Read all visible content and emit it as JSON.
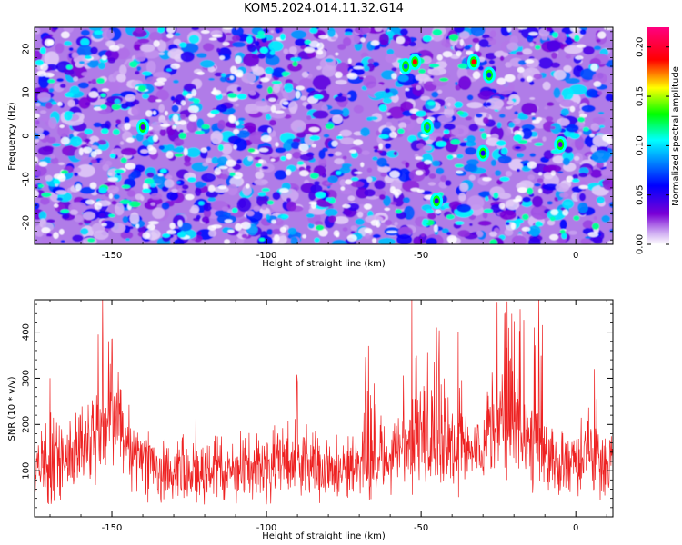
{
  "title": "KOM5.2024.014.11.32.G14",
  "chart_data": [
    {
      "type": "heatmap",
      "title": "KOM5.2024.014.11.32.G14",
      "xlabel": "Height of straight line (km)",
      "ylabel": "Frequency (Hz)",
      "xlim": [
        -175,
        12
      ],
      "ylim": [
        -25,
        25
      ],
      "xticks": [
        -150,
        -100,
        -50,
        0
      ],
      "yticks": [
        -20,
        -10,
        0,
        10,
        20
      ],
      "colorbar": {
        "label": "Normalized spectral amplitude",
        "range": [
          0,
          0.22
        ],
        "ticks": [
          "0.00",
          "0.05",
          "0.10",
          "0.15",
          "0.20"
        ],
        "colors": [
          "#ffffff",
          "#7a00d6",
          "#0000ff",
          "#00ffff",
          "#00ff00",
          "#ffff00",
          "#ff0000",
          "#ff0080"
        ]
      },
      "hotspots": [
        {
          "x": -52,
          "y": 17,
          "value": 0.22
        },
        {
          "x": -33,
          "y": 17,
          "value": 0.22
        },
        {
          "x": -55,
          "y": 16,
          "value": 0.12
        },
        {
          "x": -28,
          "y": 14,
          "value": 0.11
        },
        {
          "x": -48,
          "y": 2,
          "value": 0.13
        },
        {
          "x": -30,
          "y": -4,
          "value": 0.09
        },
        {
          "x": -45,
          "y": -15,
          "value": 0.08
        },
        {
          "x": -140,
          "y": 2,
          "value": 0.07
        },
        {
          "x": -5,
          "y": -2,
          "value": 0.06
        }
      ]
    },
    {
      "type": "line",
      "xlabel": "Height of straight line (km)",
      "ylabel": "SNR (10 * v/v)",
      "xlim": [
        -175,
        12
      ],
      "ylim": [
        0,
        470
      ],
      "xticks": [
        -150,
        -100,
        -50,
        0
      ],
      "yticks": [
        100,
        200,
        300,
        400
      ],
      "color": "#ee2222",
      "peaks": [
        {
          "x": -170,
          "y": 300
        },
        {
          "x": -153,
          "y": 470
        },
        {
          "x": -150,
          "y": 385
        },
        {
          "x": -90,
          "y": 290
        },
        {
          "x": -67,
          "y": 370
        },
        {
          "x": -53,
          "y": 470
        },
        {
          "x": -45,
          "y": 410
        },
        {
          "x": -38,
          "y": 400
        },
        {
          "x": -23,
          "y": 440
        },
        {
          "x": -18,
          "y": 450
        },
        {
          "x": -12,
          "y": 470
        },
        {
          "x": 6,
          "y": 320
        }
      ],
      "baseline_range": [
        50,
        160
      ]
    }
  ]
}
